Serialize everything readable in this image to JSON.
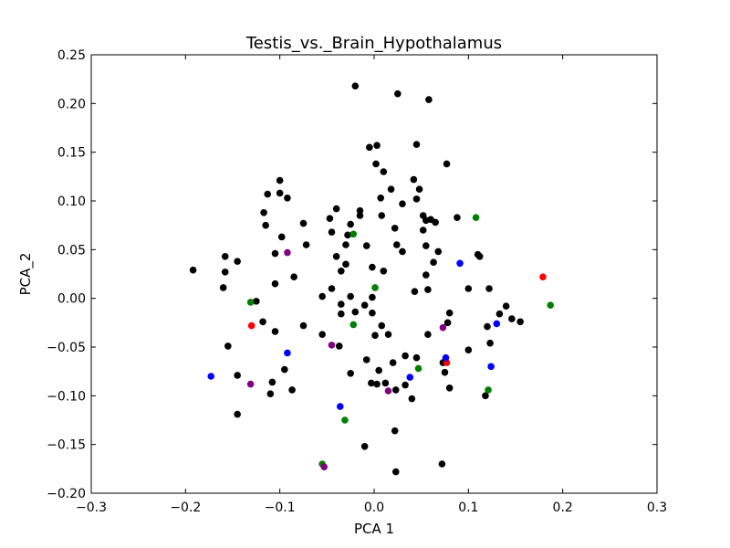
{
  "chart_data": {
    "type": "scatter",
    "title": "Testis_vs._Brain_Hypothalamus",
    "xlabel": "PCA 1",
    "ylabel": "PCA_2",
    "xlim": [
      -0.3,
      0.3
    ],
    "ylim": [
      -0.2,
      0.25
    ],
    "xticks": [
      -0.3,
      -0.2,
      -0.1,
      0.0,
      0.1,
      0.2,
      0.3
    ],
    "xtick_labels": [
      "−0.3",
      "−0.2",
      "−0.1",
      "0.0",
      "0.1",
      "0.2",
      "0.3"
    ],
    "yticks": [
      -0.2,
      -0.15,
      -0.1,
      -0.05,
      0.0,
      0.05,
      0.1,
      0.15,
      0.2,
      0.25
    ],
    "ytick_labels": [
      "−0.20",
      "−0.15",
      "−0.10",
      "−0.05",
      "0.00",
      "0.05",
      "0.10",
      "0.15",
      "0.20",
      "0.25"
    ],
    "grid": false,
    "legend": "none",
    "colors": {
      "black": "#000000",
      "red": "#ff0000",
      "blue": "#0000ff",
      "green": "#008000",
      "purple": "#800080"
    },
    "points": [
      {
        "x": -0.02,
        "y": 0.218,
        "c": "black"
      },
      {
        "x": 0.025,
        "y": 0.21,
        "c": "black"
      },
      {
        "x": 0.058,
        "y": 0.204,
        "c": "black"
      },
      {
        "x": -0.005,
        "y": 0.155,
        "c": "black"
      },
      {
        "x": 0.003,
        "y": 0.157,
        "c": "black"
      },
      {
        "x": 0.045,
        "y": 0.158,
        "c": "black"
      },
      {
        "x": 0.077,
        "y": 0.138,
        "c": "black"
      },
      {
        "x": 0.002,
        "y": 0.138,
        "c": "black"
      },
      {
        "x": 0.01,
        "y": 0.13,
        "c": "black"
      },
      {
        "x": 0.042,
        "y": 0.122,
        "c": "black"
      },
      {
        "x": -0.1,
        "y": 0.121,
        "c": "black"
      },
      {
        "x": -0.113,
        "y": 0.107,
        "c": "black"
      },
      {
        "x": -0.1,
        "y": 0.108,
        "c": "black"
      },
      {
        "x": 0.018,
        "y": 0.112,
        "c": "black"
      },
      {
        "x": 0.048,
        "y": 0.112,
        "c": "black"
      },
      {
        "x": 0.007,
        "y": 0.103,
        "c": "black"
      },
      {
        "x": 0.045,
        "y": 0.102,
        "c": "black"
      },
      {
        "x": 0.03,
        "y": 0.097,
        "c": "black"
      },
      {
        "x": -0.092,
        "y": 0.103,
        "c": "black"
      },
      {
        "x": -0.117,
        "y": 0.088,
        "c": "black"
      },
      {
        "x": -0.04,
        "y": 0.092,
        "c": "black"
      },
      {
        "x": -0.015,
        "y": 0.09,
        "c": "black"
      },
      {
        "x": -0.015,
        "y": 0.085,
        "c": "black"
      },
      {
        "x": 0.008,
        "y": 0.085,
        "c": "black"
      },
      {
        "x": 0.052,
        "y": 0.085,
        "c": "black"
      },
      {
        "x": -0.047,
        "y": 0.082,
        "c": "black"
      },
      {
        "x": 0.055,
        "y": 0.08,
        "c": "black"
      },
      {
        "x": 0.06,
        "y": 0.081,
        "c": "black"
      },
      {
        "x": 0.088,
        "y": 0.083,
        "c": "black"
      },
      {
        "x": -0.075,
        "y": 0.077,
        "c": "black"
      },
      {
        "x": -0.025,
        "y": 0.076,
        "c": "black"
      },
      {
        "x": -0.115,
        "y": 0.075,
        "c": "black"
      },
      {
        "x": 0.022,
        "y": 0.072,
        "c": "black"
      },
      {
        "x": 0.065,
        "y": 0.078,
        "c": "black"
      },
      {
        "x": -0.045,
        "y": 0.068,
        "c": "black"
      },
      {
        "x": 0.052,
        "y": 0.07,
        "c": "black"
      },
      {
        "x": -0.028,
        "y": 0.065,
        "c": "black"
      },
      {
        "x": -0.098,
        "y": 0.063,
        "c": "black"
      },
      {
        "x": -0.072,
        "y": 0.055,
        "c": "black"
      },
      {
        "x": -0.03,
        "y": 0.055,
        "c": "black"
      },
      {
        "x": -0.008,
        "y": 0.054,
        "c": "black"
      },
      {
        "x": 0.024,
        "y": 0.055,
        "c": "black"
      },
      {
        "x": 0.055,
        "y": 0.054,
        "c": "black"
      },
      {
        "x": 0.03,
        "y": 0.048,
        "c": "black"
      },
      {
        "x": 0.068,
        "y": 0.048,
        "c": "black"
      },
      {
        "x": -0.158,
        "y": 0.043,
        "c": "black"
      },
      {
        "x": -0.105,
        "y": 0.046,
        "c": "black"
      },
      {
        "x": -0.04,
        "y": 0.043,
        "c": "black"
      },
      {
        "x": 0.11,
        "y": 0.045,
        "c": "black"
      },
      {
        "x": 0.112,
        "y": 0.043,
        "c": "black"
      },
      {
        "x": -0.145,
        "y": 0.038,
        "c": "black"
      },
      {
        "x": -0.03,
        "y": 0.035,
        "c": "black"
      },
      {
        "x": 0.063,
        "y": 0.037,
        "c": "black"
      },
      {
        "x": -0.192,
        "y": 0.029,
        "c": "black"
      },
      {
        "x": -0.158,
        "y": 0.027,
        "c": "black"
      },
      {
        "x": -0.035,
        "y": 0.028,
        "c": "black"
      },
      {
        "x": -0.002,
        "y": 0.032,
        "c": "black"
      },
      {
        "x": 0.01,
        "y": 0.028,
        "c": "black"
      },
      {
        "x": -0.085,
        "y": 0.022,
        "c": "black"
      },
      {
        "x": 0.055,
        "y": 0.024,
        "c": "black"
      },
      {
        "x": -0.105,
        "y": 0.015,
        "c": "black"
      },
      {
        "x": -0.16,
        "y": 0.011,
        "c": "black"
      },
      {
        "x": -0.045,
        "y": 0.01,
        "c": "black"
      },
      {
        "x": 0.043,
        "y": 0.007,
        "c": "black"
      },
      {
        "x": 0.057,
        "y": 0.009,
        "c": "black"
      },
      {
        "x": 0.1,
        "y": 0.01,
        "c": "black"
      },
      {
        "x": 0.122,
        "y": 0.01,
        "c": "black"
      },
      {
        "x": -0.055,
        "y": 0.002,
        "c": "black"
      },
      {
        "x": -0.025,
        "y": 0.002,
        "c": "black"
      },
      {
        "x": -0.002,
        "y": 0.001,
        "c": "black"
      },
      {
        "x": -0.035,
        "y": -0.006,
        "c": "black"
      },
      {
        "x": -0.01,
        "y": -0.007,
        "c": "black"
      },
      {
        "x": -0.125,
        "y": -0.003,
        "c": "black"
      },
      {
        "x": 0.14,
        "y": -0.008,
        "c": "black"
      },
      {
        "x": -0.035,
        "y": -0.016,
        "c": "black"
      },
      {
        "x": -0.02,
        "y": -0.014,
        "c": "black"
      },
      {
        "x": -0.002,
        "y": -0.015,
        "c": "black"
      },
      {
        "x": 0.08,
        "y": -0.015,
        "c": "black"
      },
      {
        "x": 0.133,
        "y": -0.016,
        "c": "black"
      },
      {
        "x": 0.146,
        "y": -0.021,
        "c": "black"
      },
      {
        "x": 0.155,
        "y": -0.024,
        "c": "black"
      },
      {
        "x": -0.118,
        "y": -0.024,
        "c": "black"
      },
      {
        "x": -0.075,
        "y": -0.028,
        "c": "black"
      },
      {
        "x": 0.008,
        "y": -0.028,
        "c": "black"
      },
      {
        "x": 0.078,
        "y": -0.025,
        "c": "black"
      },
      {
        "x": 0.12,
        "y": -0.029,
        "c": "black"
      },
      {
        "x": -0.105,
        "y": -0.034,
        "c": "black"
      },
      {
        "x": -0.055,
        "y": -0.037,
        "c": "black"
      },
      {
        "x": 0.001,
        "y": -0.038,
        "c": "black"
      },
      {
        "x": 0.015,
        "y": -0.037,
        "c": "black"
      },
      {
        "x": 0.057,
        "y": -0.037,
        "c": "black"
      },
      {
        "x": -0.155,
        "y": -0.049,
        "c": "black"
      },
      {
        "x": -0.037,
        "y": -0.049,
        "c": "black"
      },
      {
        "x": 0.123,
        "y": -0.046,
        "c": "black"
      },
      {
        "x": 0.1,
        "y": -0.053,
        "c": "black"
      },
      {
        "x": 0.033,
        "y": -0.059,
        "c": "black"
      },
      {
        "x": -0.008,
        "y": -0.063,
        "c": "black"
      },
      {
        "x": 0.045,
        "y": -0.061,
        "c": "black"
      },
      {
        "x": 0.073,
        "y": -0.066,
        "c": "black"
      },
      {
        "x": 0.02,
        "y": -0.066,
        "c": "black"
      },
      {
        "x": -0.095,
        "y": -0.073,
        "c": "black"
      },
      {
        "x": -0.025,
        "y": -0.077,
        "c": "black"
      },
      {
        "x": 0.005,
        "y": -0.074,
        "c": "black"
      },
      {
        "x": 0.075,
        "y": -0.076,
        "c": "black"
      },
      {
        "x": -0.145,
        "y": -0.079,
        "c": "black"
      },
      {
        "x": -0.108,
        "y": -0.086,
        "c": "black"
      },
      {
        "x": -0.003,
        "y": -0.087,
        "c": "black"
      },
      {
        "x": 0.003,
        "y": -0.088,
        "c": "black"
      },
      {
        "x": 0.012,
        "y": -0.087,
        "c": "black"
      },
      {
        "x": 0.033,
        "y": -0.089,
        "c": "black"
      },
      {
        "x": -0.087,
        "y": -0.094,
        "c": "black"
      },
      {
        "x": 0.023,
        "y": -0.094,
        "c": "black"
      },
      {
        "x": 0.08,
        "y": -0.092,
        "c": "black"
      },
      {
        "x": -0.11,
        "y": -0.098,
        "c": "black"
      },
      {
        "x": 0.04,
        "y": -0.103,
        "c": "black"
      },
      {
        "x": 0.118,
        "y": -0.1,
        "c": "black"
      },
      {
        "x": -0.145,
        "y": -0.119,
        "c": "black"
      },
      {
        "x": 0.022,
        "y": -0.136,
        "c": "black"
      },
      {
        "x": -0.01,
        "y": -0.152,
        "c": "black"
      },
      {
        "x": 0.072,
        "y": -0.17,
        "c": "black"
      },
      {
        "x": 0.023,
        "y": -0.178,
        "c": "black"
      },
      {
        "x": 0.179,
        "y": 0.022,
        "c": "red"
      },
      {
        "x": -0.13,
        "y": -0.028,
        "c": "red"
      },
      {
        "x": 0.077,
        "y": -0.066,
        "c": "red"
      },
      {
        "x": 0.091,
        "y": 0.036,
        "c": "blue"
      },
      {
        "x": 0.13,
        "y": -0.026,
        "c": "blue"
      },
      {
        "x": -0.092,
        "y": -0.056,
        "c": "blue"
      },
      {
        "x": 0.076,
        "y": -0.061,
        "c": "blue"
      },
      {
        "x": 0.124,
        "y": -0.07,
        "c": "blue"
      },
      {
        "x": -0.173,
        "y": -0.08,
        "c": "blue"
      },
      {
        "x": 0.038,
        "y": -0.081,
        "c": "blue"
      },
      {
        "x": -0.036,
        "y": -0.111,
        "c": "blue"
      },
      {
        "x": 0.108,
        "y": 0.083,
        "c": "green"
      },
      {
        "x": -0.022,
        "y": 0.066,
        "c": "green"
      },
      {
        "x": 0.001,
        "y": 0.011,
        "c": "green"
      },
      {
        "x": -0.131,
        "y": -0.004,
        "c": "green"
      },
      {
        "x": 0.187,
        "y": -0.007,
        "c": "green"
      },
      {
        "x": -0.022,
        "y": -0.027,
        "c": "green"
      },
      {
        "x": 0.047,
        "y": -0.072,
        "c": "green"
      },
      {
        "x": 0.121,
        "y": -0.094,
        "c": "green"
      },
      {
        "x": -0.031,
        "y": -0.125,
        "c": "green"
      },
      {
        "x": -0.055,
        "y": -0.17,
        "c": "green"
      },
      {
        "x": -0.092,
        "y": 0.047,
        "c": "purple"
      },
      {
        "x": 0.073,
        "y": -0.03,
        "c": "purple"
      },
      {
        "x": -0.045,
        "y": -0.048,
        "c": "purple"
      },
      {
        "x": -0.131,
        "y": -0.088,
        "c": "purple"
      },
      {
        "x": 0.015,
        "y": -0.095,
        "c": "purple"
      },
      {
        "x": -0.053,
        "y": -0.173,
        "c": "purple"
      }
    ]
  }
}
